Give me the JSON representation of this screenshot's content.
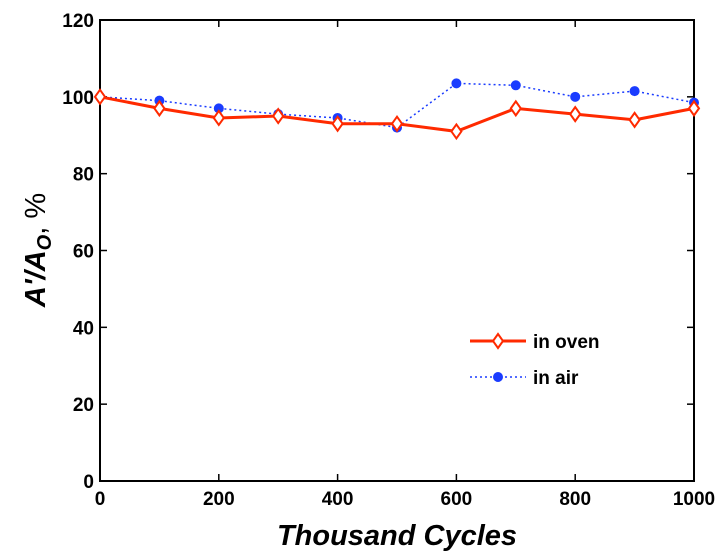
{
  "chart_data": {
    "type": "line",
    "title": "",
    "xlabel": "Thousand Cycles",
    "ylabel": {
      "main": "A'/A",
      "subscript": "O",
      "suffix": ", %"
    },
    "xlim": [
      0,
      1000
    ],
    "ylim": [
      0,
      120
    ],
    "xticks": [
      0,
      200,
      400,
      600,
      800,
      1000
    ],
    "yticks": [
      0,
      20,
      40,
      60,
      80,
      100,
      120
    ],
    "x": [
      0,
      100,
      200,
      300,
      400,
      500,
      600,
      700,
      800,
      900,
      1000
    ],
    "grid": false,
    "legend_position": "lower-right",
    "series": [
      {
        "name": "in oven",
        "color": "#ff2a00",
        "line_style": "solid",
        "marker": "diamond-open",
        "values": [
          100,
          97,
          94.5,
          95,
          93,
          93,
          91,
          97,
          95.5,
          94,
          97
        ]
      },
      {
        "name": "in air",
        "color": "#1a3cff",
        "line_style": "dotted",
        "marker": "circle-filled",
        "values": [
          100,
          99,
          97,
          95.5,
          94.5,
          92,
          103.5,
          103,
          100,
          101.5,
          98.5
        ]
      }
    ]
  }
}
